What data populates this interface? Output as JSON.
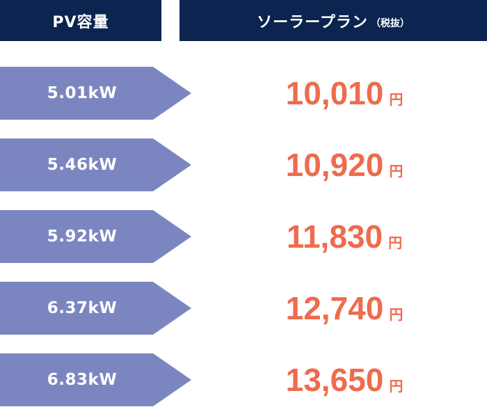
{
  "header": {
    "pv_label": "PV容量",
    "plan_label": "ソーラープラン",
    "plan_note": "（税抜）"
  },
  "rows": [
    {
      "capacity": "5.01kW",
      "price": "10,010",
      "unit": "円"
    },
    {
      "capacity": "5.46kW",
      "price": "10,920",
      "unit": "円"
    },
    {
      "capacity": "5.92kW",
      "price": "11,830",
      "unit": "円"
    },
    {
      "capacity": "6.37kW",
      "price": "12,740",
      "unit": "円"
    },
    {
      "capacity": "6.83kW",
      "price": "13,650",
      "unit": "円"
    }
  ],
  "colors": {
    "header_bg": "#0b2450",
    "arrow_bg": "#7b86c1",
    "price_text": "#ee6b4d"
  }
}
